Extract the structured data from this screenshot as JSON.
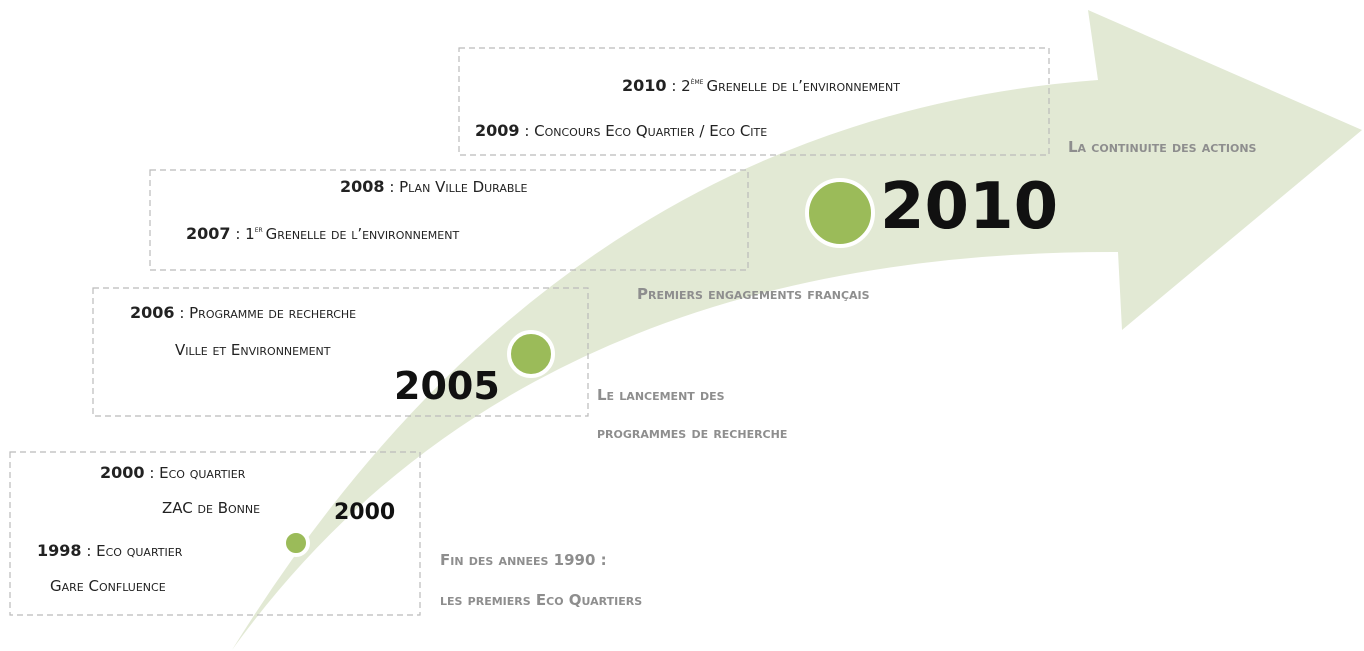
{
  "timeline": {
    "boxes": [
      {
        "entries": [
          {
            "year": "2000",
            "text": ": Eco quartier",
            "text2": "ZAC de Bonne"
          },
          {
            "year": "1998",
            "text": ": Eco quartier",
            "text2": "Gare Confluence"
          }
        ]
      },
      {
        "entries": [
          {
            "year": "2006",
            "text": ": Programme de recherche",
            "text2": "Ville et Environnement"
          }
        ]
      },
      {
        "entries": [
          {
            "year": "2008",
            "text": ": Plan Ville Durable"
          },
          {
            "year": "2007",
            "text": ": 1",
            "sup": "er",
            "after": "Grenelle de l’environnement"
          }
        ]
      },
      {
        "entries": [
          {
            "year": "2010",
            "text": ": 2",
            "sup": "ème",
            "after": "Grenelle de l’environnement"
          },
          {
            "year": "2009",
            "text": ": Concours Eco Quartier / Eco Cite"
          }
        ]
      }
    ],
    "milestones": [
      {
        "year": "2000",
        "caption": [
          "Fin des annees 1990 :",
          "les premiers Eco Quartiers"
        ]
      },
      {
        "year": "2005",
        "caption": [
          "Le lancement des",
          "programmes de recherche"
        ]
      },
      {
        "year": "2010",
        "caption": [
          "Premiers engagements français"
        ]
      }
    ],
    "arrow_label": "La continuite des actions"
  }
}
